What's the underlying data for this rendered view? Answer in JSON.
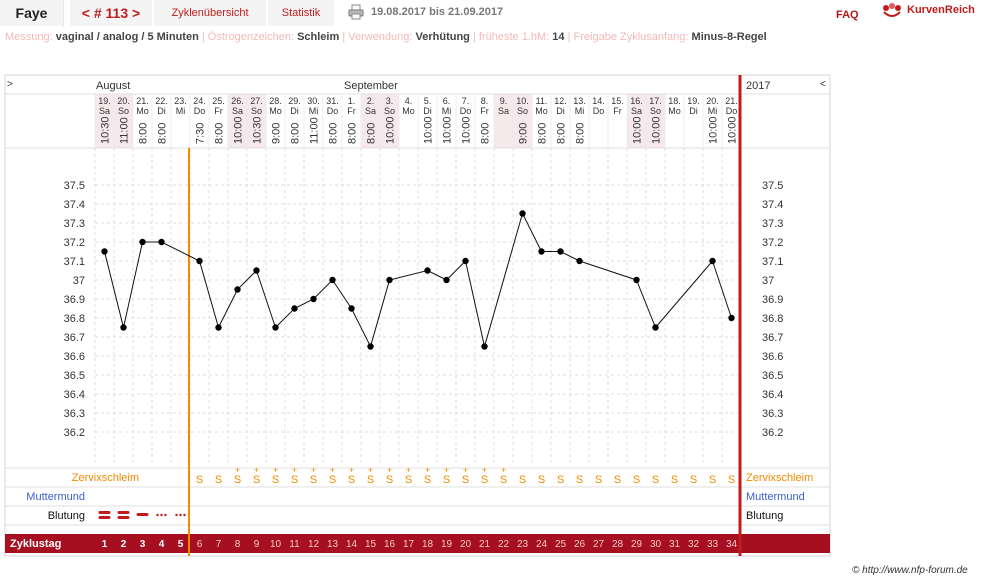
{
  "header": {
    "name": "Faye",
    "cycle_label": "< # 113 >",
    "tabs": [
      "Zyklenübersicht",
      "Statistik"
    ],
    "date_range": "19.08.2017 bis 21.09.2017",
    "faq": "FAQ",
    "logo_text": "KurvenReich"
  },
  "info": [
    {
      "label": "Messung:",
      "value": "vaginal / analog / 5 Minuten"
    },
    {
      "label": "Östrogenzeichen:",
      "value": "Schleim"
    },
    {
      "label": "Verwendung:",
      "value": "Verhütung"
    },
    {
      "label": "früheste 1.hM:",
      "value": "14"
    },
    {
      "label": "Freigabe Zyklusanfang:",
      "value": "Minus-8-Regel"
    }
  ],
  "nav": {
    "left": ">",
    "right": "<"
  },
  "months": {
    "aug": "August",
    "sep": "September",
    "year": "2017"
  },
  "days": [
    {
      "date": "19.",
      "wd": "Sa",
      "time": "10:30",
      "we": true
    },
    {
      "date": "20.",
      "wd": "So",
      "time": "11:00",
      "we": true
    },
    {
      "date": "21.",
      "wd": "Mo",
      "time": "8:00",
      "we": false
    },
    {
      "date": "22.",
      "wd": "Di",
      "time": "8:00",
      "we": false
    },
    {
      "date": "23.",
      "wd": "Mi",
      "time": "",
      "we": false
    },
    {
      "date": "24.",
      "wd": "Do",
      "time": "7:30",
      "we": false
    },
    {
      "date": "25.",
      "wd": "Fr",
      "time": "8:00",
      "we": false
    },
    {
      "date": "26.",
      "wd": "Sa",
      "time": "10:00",
      "we": true
    },
    {
      "date": "27.",
      "wd": "So",
      "time": "10:30",
      "we": true
    },
    {
      "date": "28.",
      "wd": "Mo",
      "time": "9:00",
      "we": false
    },
    {
      "date": "29.",
      "wd": "Di",
      "time": "8:00",
      "we": false
    },
    {
      "date": "30.",
      "wd": "Mi",
      "time": "11:00",
      "we": false
    },
    {
      "date": "31.",
      "wd": "Do",
      "time": "8:00",
      "we": false
    },
    {
      "date": "1.",
      "wd": "Fr",
      "time": "8:00",
      "we": false
    },
    {
      "date": "2.",
      "wd": "Sa",
      "time": "8:00",
      "we": true
    },
    {
      "date": "3.",
      "wd": "So",
      "time": "10:00",
      "we": true
    },
    {
      "date": "4.",
      "wd": "Mo",
      "time": "",
      "we": false
    },
    {
      "date": "5.",
      "wd": "Di",
      "time": "10:00",
      "we": false
    },
    {
      "date": "6.",
      "wd": "Mi",
      "time": "10:00",
      "we": false
    },
    {
      "date": "7.",
      "wd": "Do",
      "time": "10:00",
      "we": false
    },
    {
      "date": "8.",
      "wd": "Fr",
      "time": "8:00",
      "we": false
    },
    {
      "date": "9.",
      "wd": "Sa",
      "time": "",
      "we": true
    },
    {
      "date": "10.",
      "wd": "So",
      "time": "9:00",
      "we": true
    },
    {
      "date": "11.",
      "wd": "Mo",
      "time": "8:00",
      "we": false
    },
    {
      "date": "12.",
      "wd": "Di",
      "time": "8:00",
      "we": false
    },
    {
      "date": "13.",
      "wd": "Mi",
      "time": "8:00",
      "we": false
    },
    {
      "date": "14.",
      "wd": "Do",
      "time": "",
      "we": false
    },
    {
      "date": "15.",
      "wd": "Fr",
      "time": "",
      "we": false
    },
    {
      "date": "16.",
      "wd": "Sa",
      "time": "10:00",
      "we": true
    },
    {
      "date": "17.",
      "wd": "So",
      "time": "10:00",
      "we": true
    },
    {
      "date": "18.",
      "wd": "Mo",
      "time": "",
      "we": false
    },
    {
      "date": "19.",
      "wd": "Di",
      "time": "",
      "we": false
    },
    {
      "date": "20.",
      "wd": "Mi",
      "time": "10:00",
      "we": false
    },
    {
      "date": "21.",
      "wd": "Do",
      "time": "10:00",
      "we": false
    }
  ],
  "yticks": [
    "37.5",
    "37.4",
    "37.3",
    "37.2",
    "37.1",
    "37",
    "36.9",
    "36.8",
    "36.7",
    "36.6",
    "36.5",
    "36.4",
    "36.3",
    "36.2"
  ],
  "rows": {
    "mucus": "Zervixschleim",
    "cervix": "Muttermund",
    "bleeding": "Blutung",
    "cycle_day": "Zyklustag"
  },
  "mucus": [
    "",
    "",
    "",
    "",
    "",
    "S",
    "S",
    "S+",
    "S+",
    "S+",
    "S+",
    "S+",
    "S+",
    "S+",
    "S+",
    "S+",
    "S+",
    "S+",
    "S+",
    "S+",
    "S+",
    "S+",
    "S",
    "S",
    "S",
    "S",
    "S",
    "S",
    "S",
    "S",
    "S",
    "S",
    "S",
    "S"
  ],
  "bleeding": [
    "heavy",
    "heavy",
    "medium",
    "spotting",
    "spotting",
    "",
    "",
    "",
    "",
    "",
    "",
    "",
    "",
    "",
    "",
    "",
    "",
    "",
    "",
    "",
    "",
    "",
    "",
    "",
    "",
    "",
    "",
    "",
    "",
    "",
    "",
    "",
    "",
    ""
  ],
  "cycle_days": [
    "1",
    "2",
    "3",
    "4",
    "5",
    "6",
    "7",
    "8",
    "9",
    "10",
    "11",
    "12",
    "13",
    "14",
    "15",
    "16",
    "17",
    "18",
    "19",
    "20",
    "21",
    "22",
    "23",
    "24",
    "25",
    "26",
    "27",
    "28",
    "29",
    "30",
    "31",
    "32",
    "33",
    "34"
  ],
  "colors": {
    "accent": "#c21b1b",
    "cycle_bar": "#a60f1f",
    "orange": "#f28a00",
    "blue": "#3a5fc8",
    "weekend": "#f6e9ec"
  },
  "credit": "© http://www.nfp-forum.de",
  "chart_data": {
    "type": "line",
    "title": "",
    "xlabel": "",
    "ylabel": "",
    "x": [
      "19.",
      "20.",
      "21.",
      "22.",
      "23.",
      "24.",
      "25.",
      "26.",
      "27.",
      "28.",
      "29.",
      "30.",
      "31.",
      "1.",
      "2.",
      "3.",
      "4.",
      "5.",
      "6.",
      "7.",
      "8.",
      "9.",
      "10.",
      "11.",
      "12.",
      "13.",
      "14.",
      "15.",
      "16.",
      "17.",
      "18.",
      "19.",
      "20.",
      "21."
    ],
    "series": [
      {
        "values": [
          37.15,
          36.75,
          37.2,
          37.2,
          null,
          37.1,
          36.75,
          36.95,
          37.05,
          36.75,
          36.85,
          36.9,
          37.0,
          36.85,
          36.65,
          37.0,
          null,
          37.05,
          37.0,
          37.1,
          36.65,
          null,
          37.35,
          37.15,
          37.15,
          37.1,
          null,
          null,
          37.0,
          36.75,
          null,
          null,
          37.1,
          36.8
        ]
      }
    ],
    "ylim": [
      36.2,
      37.5
    ],
    "grid": true,
    "markers": [
      {
        "after_cycle_day": "5",
        "color": "#f28a00"
      },
      {
        "after_cycle_day": "34",
        "color": "#c21b1b"
      }
    ]
  }
}
